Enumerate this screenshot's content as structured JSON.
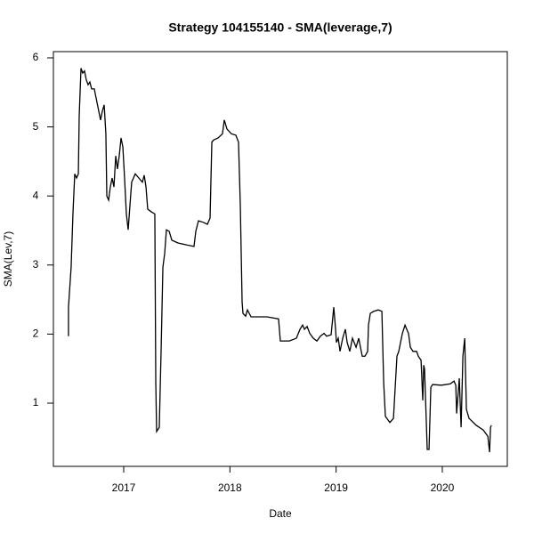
{
  "chart_data": {
    "type": "line",
    "title": "Strategy 104155140 - SMA(leverage,7)",
    "x_label": "Date",
    "y_label": "SMA(Lev,7)",
    "color": "#000000",
    "x": [
      2016.48,
      2016.48,
      2016.505,
      2016.522,
      2016.539,
      2016.556,
      2016.573,
      2016.581,
      2016.598,
      2016.614,
      2016.631,
      2016.648,
      2016.665,
      2016.681,
      2016.698,
      2016.723,
      2016.74,
      2016.757,
      2016.782,
      2016.799,
      2016.816,
      2016.832,
      2016.841,
      2016.858,
      2016.874,
      2016.891,
      2016.908,
      2016.925,
      2016.941,
      2016.958,
      2016.975,
      2016.992,
      2017.008,
      2017.025,
      2017.042,
      2017.059,
      2017.075,
      2017.109,
      2017.142,
      2017.176,
      2017.193,
      2017.21,
      2017.226,
      2017.26,
      2017.293,
      2017.302,
      2017.31,
      2017.335,
      2017.352,
      2017.369,
      2017.386,
      2017.402,
      2017.428,
      2017.453,
      2017.511,
      2017.595,
      2017.662,
      2017.679,
      2017.704,
      2017.746,
      2017.788,
      2017.813,
      2017.83,
      2017.847,
      2017.889,
      2017.93,
      2017.947,
      2017.972,
      2018.014,
      2018.056,
      2018.081,
      2018.098,
      2018.115,
      2018.123,
      2018.148,
      2018.165,
      2018.199,
      2018.266,
      2018.35,
      2018.458,
      2018.475,
      2018.559,
      2018.626,
      2018.66,
      2018.685,
      2018.702,
      2018.727,
      2018.752,
      2018.785,
      2018.819,
      2018.852,
      2018.886,
      2018.911,
      2018.953,
      2018.978,
      2018.995,
      2019.003,
      2019.02,
      2019.037,
      2019.062,
      2019.087,
      2019.104,
      2019.129,
      2019.154,
      2019.188,
      2019.213,
      2019.246,
      2019.272,
      2019.297,
      2019.305,
      2019.322,
      2019.355,
      2019.397,
      2019.431,
      2019.448,
      2019.464,
      2019.506,
      2019.54,
      2019.573,
      2019.59,
      2019.624,
      2019.649,
      2019.665,
      2019.682,
      2019.699,
      2019.724,
      2019.758,
      2019.774,
      2019.8,
      2019.816,
      2019.825,
      2019.833,
      2019.858,
      2019.875,
      2019.892,
      2019.909,
      2019.992,
      2020.076,
      2020.11,
      2020.127,
      2020.135,
      2020.16,
      2020.177,
      2020.194,
      2020.211,
      2020.227,
      2020.252,
      2020.319,
      2020.386,
      2020.429,
      2020.445,
      2020.454,
      2020.462
    ],
    "values": [
      1.97,
      2.39,
      2.97,
      3.74,
      4.32,
      4.26,
      4.32,
      5.16,
      5.85,
      5.78,
      5.81,
      5.68,
      5.61,
      5.65,
      5.55,
      5.55,
      5.42,
      5.29,
      5.1,
      5.23,
      5.32,
      4.9,
      4.0,
      3.94,
      4.13,
      4.26,
      4.13,
      4.58,
      4.39,
      4.58,
      4.84,
      4.71,
      4.26,
      3.74,
      3.51,
      3.87,
      4.2,
      4.32,
      4.26,
      4.2,
      4.3,
      4.13,
      3.81,
      3.77,
      3.74,
      1.3,
      0.59,
      0.65,
      1.75,
      2.97,
      3.17,
      3.51,
      3.49,
      3.36,
      3.32,
      3.29,
      3.27,
      3.49,
      3.64,
      3.62,
      3.59,
      3.68,
      4.78,
      4.81,
      4.84,
      4.9,
      5.1,
      4.97,
      4.9,
      4.88,
      4.78,
      3.87,
      2.46,
      2.3,
      2.26,
      2.35,
      2.25,
      2.25,
      2.25,
      2.22,
      1.9,
      1.9,
      1.94,
      2.07,
      2.13,
      2.07,
      2.11,
      2.01,
      1.94,
      1.9,
      1.97,
      2.01,
      1.97,
      1.99,
      2.39,
      2.07,
      1.88,
      1.94,
      1.75,
      1.94,
      2.07,
      1.88,
      1.75,
      1.94,
      1.81,
      1.94,
      1.68,
      1.68,
      1.75,
      2.13,
      2.3,
      2.33,
      2.35,
      2.33,
      1.3,
      0.81,
      0.72,
      0.78,
      1.68,
      1.75,
      2.01,
      2.13,
      2.07,
      2.01,
      1.81,
      1.75,
      1.75,
      1.68,
      1.62,
      1.04,
      1.55,
      1.49,
      0.33,
      0.33,
      1.23,
      1.27,
      1.26,
      1.28,
      1.32,
      1.26,
      0.85,
      1.36,
      0.65,
      1.68,
      1.94,
      0.91,
      0.78,
      0.68,
      0.61,
      0.52,
      0.29,
      0.65,
      0.68
    ],
    "xlim": [
      2016.338,
      2020.612
    ],
    "ylim": [
      0.085,
      6.09
    ],
    "xticks": [
      2017,
      2018,
      2019,
      2020
    ],
    "yticks": [
      1,
      2,
      3,
      4,
      5,
      6
    ]
  }
}
